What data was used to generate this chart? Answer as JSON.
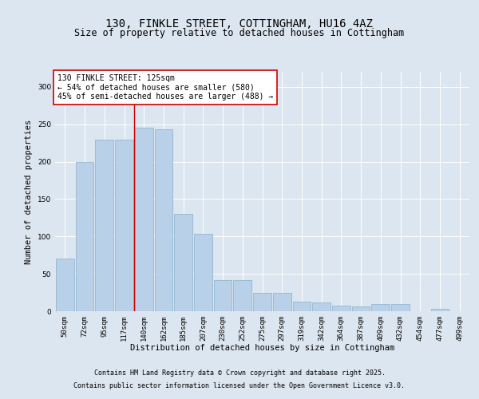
{
  "title_line1": "130, FINKLE STREET, COTTINGHAM, HU16 4AZ",
  "title_line2": "Size of property relative to detached houses in Cottingham",
  "xlabel": "Distribution of detached houses by size in Cottingham",
  "ylabel": "Number of detached properties",
  "categories": [
    "50sqm",
    "72sqm",
    "95sqm",
    "117sqm",
    "140sqm",
    "162sqm",
    "185sqm",
    "207sqm",
    "230sqm",
    "252sqm",
    "275sqm",
    "297sqm",
    "319sqm",
    "342sqm",
    "364sqm",
    "387sqm",
    "409sqm",
    "432sqm",
    "454sqm",
    "477sqm",
    "499sqm"
  ],
  "values": [
    70,
    199,
    229,
    229,
    245,
    243,
    130,
    104,
    42,
    42,
    25,
    25,
    13,
    12,
    8,
    6,
    10,
    10,
    0,
    3,
    0
  ],
  "bar_color": "#b8d0e8",
  "bar_edge_color": "#8ab0cc",
  "vline_x": 3.5,
  "vline_color": "#cc0000",
  "annotation_text": "130 FINKLE STREET: 125sqm\n← 54% of detached houses are smaller (580)\n45% of semi-detached houses are larger (488) →",
  "annotation_box_facecolor": "#ffffff",
  "annotation_border_color": "#cc0000",
  "ylim": [
    0,
    320
  ],
  "yticks": [
    0,
    50,
    100,
    150,
    200,
    250,
    300
  ],
  "background_color": "#dce6f0",
  "plot_background_color": "#dce6f0",
  "footer_line1": "Contains HM Land Registry data © Crown copyright and database right 2025.",
  "footer_line2": "Contains public sector information licensed under the Open Government Licence v3.0.",
  "title_fontsize": 10,
  "subtitle_fontsize": 8.5,
  "axis_label_fontsize": 7.5,
  "tick_fontsize": 6.5,
  "annotation_fontsize": 7,
  "footer_fontsize": 6
}
